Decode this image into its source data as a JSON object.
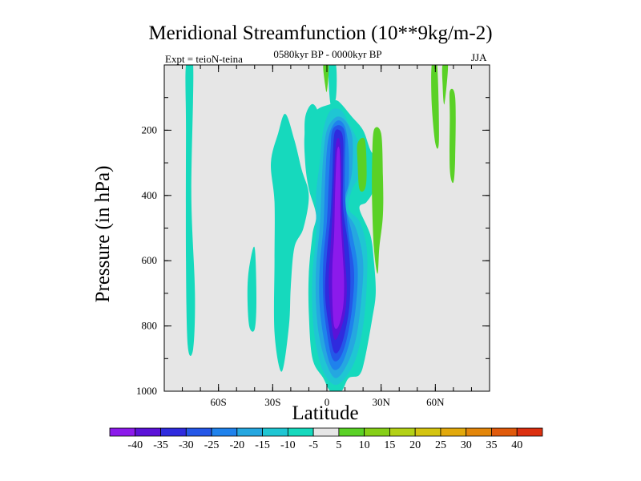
{
  "chart_data": {
    "type": "heatmap",
    "title": "Meridional Streamfunction (10**9kg/m-2)",
    "subtitle": "0580kyr BP - 0000kyr BP",
    "experiment": "Expt = teioN-teina",
    "season": "JJA",
    "xlabel": "Latitude",
    "ylabel": "Pressure (in hPa)",
    "xlim": [
      -90,
      90
    ],
    "ylim": [
      0,
      1000
    ],
    "y_inverted": true,
    "x_ticks": [
      {
        "value": -60,
        "label": "60S"
      },
      {
        "value": -30,
        "label": "30S"
      },
      {
        "value": 0,
        "label": "0"
      },
      {
        "value": 30,
        "label": "30N"
      },
      {
        "value": 60,
        "label": "60N"
      }
    ],
    "y_ticks": [
      {
        "value": 200,
        "label": "200"
      },
      {
        "value": 400,
        "label": "400"
      },
      {
        "value": 600,
        "label": "600"
      },
      {
        "value": 800,
        "label": "800"
      },
      {
        "value": 1000,
        "label": "1000"
      }
    ],
    "missing_color": "#e6e6e6",
    "colorbar": {
      "labels": [
        "-40",
        "-35",
        "-30",
        "-25",
        "-20",
        "-15",
        "-10",
        "-5",
        "5",
        "10",
        "15",
        "20",
        "25",
        "30",
        "35",
        "40"
      ],
      "colors": [
        "#8c1aeb",
        "#5b12d8",
        "#2f2bde",
        "#2457e8",
        "#1f82ec",
        "#25a7e0",
        "#1fc6d3",
        "#16d9bd",
        "#e6e6e6",
        "#5ad126",
        "#86cf17",
        "#b3d116",
        "#d4c410",
        "#e2a90c",
        "#e3860a",
        "#e05a0b",
        "#dc3010"
      ]
    },
    "features": [
      {
        "shape": "band",
        "value": -6,
        "points": [
          [
            -78,
            0
          ],
          [
            -74,
            0
          ],
          [
            -75,
            400
          ],
          [
            -73,
            700
          ],
          [
            -74,
            870
          ],
          [
            -77,
            860
          ],
          [
            -78,
            600
          ],
          [
            -78,
            200
          ]
        ]
      },
      {
        "shape": "band",
        "value": -6,
        "points": [
          [
            1,
            0
          ],
          [
            5,
            0
          ],
          [
            5,
            100
          ],
          [
            2,
            120
          ]
        ]
      },
      {
        "shape": "band",
        "value": -6,
        "points": [
          [
            -43,
            620
          ],
          [
            -40,
            560
          ],
          [
            -39,
            720
          ],
          [
            -40,
            810
          ],
          [
            -43,
            800
          ],
          [
            -44,
            700
          ]
        ]
      },
      {
        "shape": "blob",
        "value": -6,
        "points": [
          [
            -27,
            210
          ],
          [
            -23,
            150
          ],
          [
            -18,
            230
          ],
          [
            -14,
            320
          ],
          [
            -10,
            400
          ],
          [
            -13,
            500
          ],
          [
            -18,
            560
          ],
          [
            -20,
            680
          ],
          [
            -21,
            800
          ],
          [
            -25,
            940
          ],
          [
            -29,
            820
          ],
          [
            -29,
            600
          ],
          [
            -29,
            420
          ],
          [
            -31,
            300
          ]
        ]
      },
      {
        "shape": "blob",
        "value": -6,
        "points": [
          [
            -12,
            160
          ],
          [
            -8,
            120
          ],
          [
            -4,
            160
          ],
          [
            -2,
            260
          ],
          [
            -6,
            330
          ],
          [
            -10,
            300
          ],
          [
            -12,
            240
          ]
        ]
      },
      {
        "shape": "blob",
        "value": -6,
        "points": [
          [
            -12,
            200
          ],
          [
            -6,
            140
          ],
          [
            2,
            120
          ],
          [
            6,
            110
          ],
          [
            14,
            160
          ],
          [
            20,
            200
          ],
          [
            24,
            260
          ],
          [
            28,
            300
          ],
          [
            26,
            380
          ],
          [
            22,
            420
          ],
          [
            18,
            440
          ],
          [
            24,
            520
          ],
          [
            26,
            600
          ],
          [
            27,
            700
          ],
          [
            25,
            780
          ],
          [
            21,
            900
          ],
          [
            18,
            950
          ],
          [
            12,
            960
          ],
          [
            8,
            1000
          ],
          [
            2,
            1000
          ],
          [
            -2,
            960
          ],
          [
            -8,
            900
          ],
          [
            -10,
            760
          ],
          [
            -10,
            640
          ],
          [
            -8,
            520
          ],
          [
            -6,
            460
          ],
          [
            -10,
            380
          ],
          [
            -12,
            300
          ]
        ]
      },
      {
        "shape": "blob",
        "value": -12,
        "points": [
          [
            -2,
            200
          ],
          [
            2,
            140
          ],
          [
            8,
            140
          ],
          [
            12,
            180
          ],
          [
            16,
            220
          ],
          [
            20,
            280
          ],
          [
            18,
            340
          ],
          [
            14,
            380
          ],
          [
            12,
            440
          ],
          [
            18,
            480
          ],
          [
            22,
            560
          ],
          [
            22,
            680
          ],
          [
            20,
            800
          ],
          [
            16,
            900
          ],
          [
            10,
            960
          ],
          [
            4,
            980
          ],
          [
            -2,
            940
          ],
          [
            -6,
            860
          ],
          [
            -8,
            760
          ],
          [
            -8,
            640
          ],
          [
            -6,
            520
          ],
          [
            -6,
            400
          ],
          [
            -4,
            300
          ]
        ]
      },
      {
        "shape": "blob",
        "value": -17,
        "points": [
          [
            0,
            200
          ],
          [
            5,
            160
          ],
          [
            10,
            170
          ],
          [
            14,
            220
          ],
          [
            14,
            320
          ],
          [
            12,
            380
          ],
          [
            10,
            440
          ],
          [
            16,
            500
          ],
          [
            20,
            600
          ],
          [
            19,
            720
          ],
          [
            16,
            840
          ],
          [
            11,
            920
          ],
          [
            5,
            960
          ],
          [
            0,
            920
          ],
          [
            -4,
            840
          ],
          [
            -6,
            740
          ],
          [
            -6,
            620
          ],
          [
            -4,
            500
          ],
          [
            -3,
            380
          ],
          [
            -2,
            280
          ]
        ]
      },
      {
        "shape": "blob",
        "value": -22,
        "points": [
          [
            2,
            200
          ],
          [
            6,
            170
          ],
          [
            10,
            190
          ],
          [
            12,
            260
          ],
          [
            12,
            360
          ],
          [
            10,
            420
          ],
          [
            14,
            520
          ],
          [
            17,
            620
          ],
          [
            16,
            740
          ],
          [
            13,
            840
          ],
          [
            8,
            920
          ],
          [
            3,
            930
          ],
          [
            -1,
            860
          ],
          [
            -4,
            740
          ],
          [
            -4,
            620
          ],
          [
            -2,
            500
          ],
          [
            -1,
            360
          ],
          [
            0,
            260
          ]
        ]
      },
      {
        "shape": "blob",
        "value": -27,
        "points": [
          [
            3,
            200
          ],
          [
            7,
            185
          ],
          [
            10,
            210
          ],
          [
            10,
            300
          ],
          [
            10,
            400
          ],
          [
            12,
            520
          ],
          [
            15,
            630
          ],
          [
            14,
            740
          ],
          [
            11,
            840
          ],
          [
            7,
            900
          ],
          [
            3,
            900
          ],
          [
            0,
            820
          ],
          [
            -2,
            720
          ],
          [
            -2,
            600
          ],
          [
            0,
            480
          ],
          [
            1,
            360
          ],
          [
            2,
            260
          ]
        ]
      },
      {
        "shape": "blob",
        "value": -32,
        "points": [
          [
            4,
            215
          ],
          [
            7,
            200
          ],
          [
            9,
            230
          ],
          [
            9,
            330
          ],
          [
            9,
            440
          ],
          [
            12,
            560
          ],
          [
            13,
            660
          ],
          [
            12,
            760
          ],
          [
            8,
            860
          ],
          [
            4,
            880
          ],
          [
            1,
            800
          ],
          [
            -1,
            700
          ],
          [
            0,
            580
          ],
          [
            2,
            460
          ],
          [
            3,
            340
          ]
        ]
      },
      {
        "shape": "blob",
        "value": -37,
        "points": [
          [
            5,
            240
          ],
          [
            7,
            230
          ],
          [
            8,
            300
          ],
          [
            8,
            420
          ],
          [
            9,
            520
          ],
          [
            10,
            600
          ],
          [
            11,
            680
          ],
          [
            10,
            760
          ],
          [
            7,
            820
          ],
          [
            4,
            840
          ],
          [
            2,
            760
          ],
          [
            1,
            660
          ],
          [
            2,
            560
          ],
          [
            3,
            460
          ],
          [
            4,
            340
          ]
        ]
      },
      {
        "shape": "blob",
        "value": -42,
        "points": [
          [
            5.5,
            270
          ],
          [
            7,
            260
          ],
          [
            7.5,
            360
          ],
          [
            7.5,
            460
          ],
          [
            8.5,
            560
          ],
          [
            9.5,
            660
          ],
          [
            9,
            740
          ],
          [
            6.5,
            800
          ],
          [
            4,
            800
          ],
          [
            3,
            720
          ],
          [
            3,
            620
          ],
          [
            4,
            520
          ],
          [
            4.5,
            400
          ]
        ]
      },
      {
        "shape": "band",
        "value": 7,
        "points": [
          [
            17,
            240
          ],
          [
            21,
            230
          ],
          [
            22,
            330
          ],
          [
            21,
            380
          ],
          [
            18,
            380
          ],
          [
            17,
            300
          ]
        ]
      },
      {
        "shape": "band",
        "value": 7,
        "points": [
          [
            26,
            200
          ],
          [
            30,
            210
          ],
          [
            31,
            340
          ],
          [
            31,
            460
          ],
          [
            29,
            560
          ],
          [
            28,
            640
          ],
          [
            26,
            560
          ],
          [
            25,
            420
          ],
          [
            25,
            300
          ]
        ]
      },
      {
        "shape": "band",
        "value": 7,
        "points": [
          [
            58,
            0
          ],
          [
            61,
            0
          ],
          [
            62,
            230
          ],
          [
            60,
            240
          ],
          [
            58,
            120
          ]
        ]
      },
      {
        "shape": "band",
        "value": 7,
        "points": [
          [
            64,
            0
          ],
          [
            67,
            0
          ],
          [
            65,
            120
          ],
          [
            64,
            60
          ]
        ]
      },
      {
        "shape": "band",
        "value": 7,
        "points": [
          [
            68,
            80
          ],
          [
            71,
            100
          ],
          [
            71,
            280
          ],
          [
            70,
            360
          ],
          [
            68,
            320
          ],
          [
            68,
            160
          ]
        ]
      },
      {
        "shape": "band",
        "value": 7,
        "points": [
          [
            -2,
            0
          ],
          [
            1,
            0
          ],
          [
            0,
            80
          ],
          [
            -1,
            60
          ]
        ]
      }
    ]
  }
}
